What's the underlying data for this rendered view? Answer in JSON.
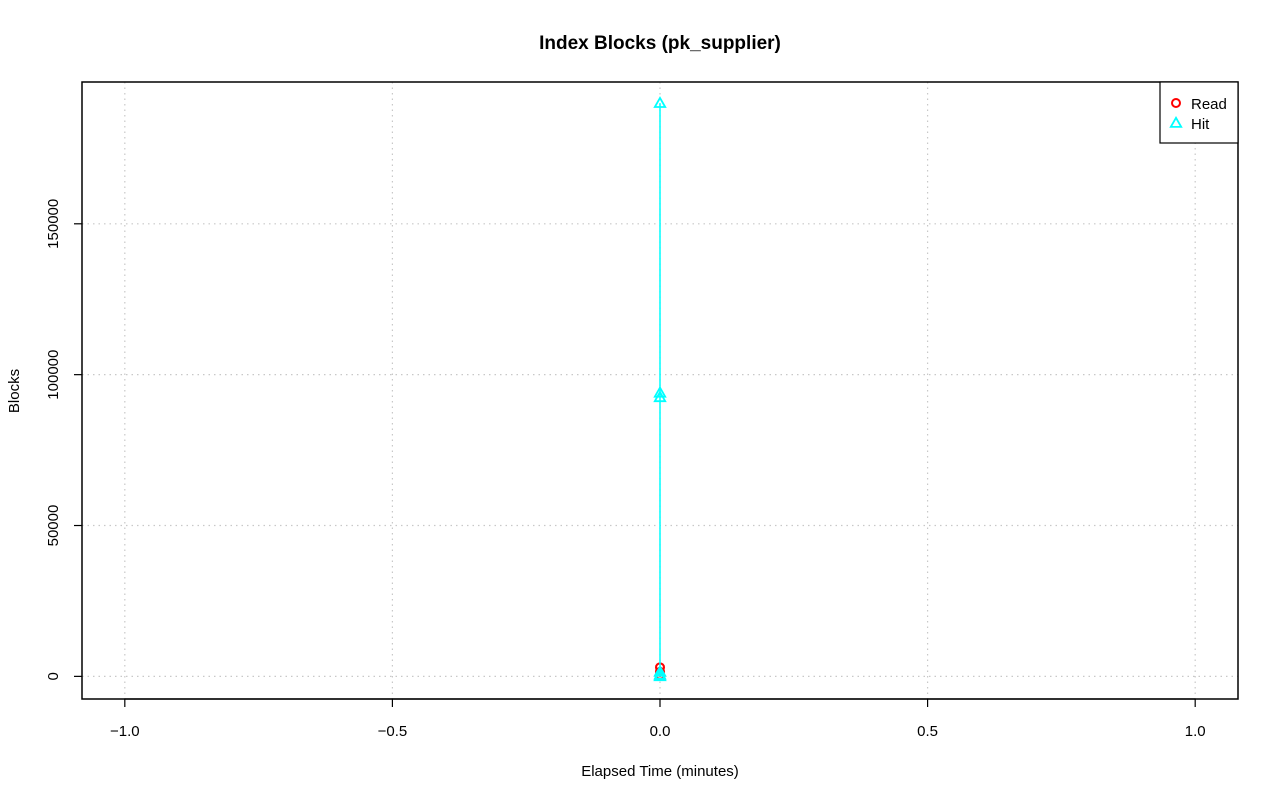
{
  "chart_data": {
    "type": "scatter",
    "title": "Index Blocks (pk_supplier)",
    "xlabel": "Elapsed Time (minutes)",
    "ylabel": "Blocks",
    "xlim": [
      -1.08,
      1.08
    ],
    "ylim": [
      -7500,
      197000
    ],
    "x_ticks": [
      -1.0,
      -0.5,
      0.0,
      0.5,
      1.0
    ],
    "x_tick_labels": [
      "−1.0",
      "−0.5",
      "0.0",
      "0.5",
      "1.0"
    ],
    "y_ticks": [
      0,
      50000,
      100000,
      150000
    ],
    "y_tick_labels": [
      "0",
      "50000",
      "100000",
      "150000"
    ],
    "grid": true,
    "legend_position": "top-right",
    "series": [
      {
        "name": "Read",
        "color": "#ff0000",
        "marker": "circle",
        "x": [
          0,
          0,
          0
        ],
        "y": [
          3000,
          1500,
          500
        ]
      },
      {
        "name": "Hit",
        "color": "#00ffff",
        "marker": "triangle",
        "x": [
          0,
          0,
          0,
          0,
          0,
          0
        ],
        "y": [
          190000,
          94000,
          92500,
          1500,
          500,
          0
        ]
      }
    ]
  }
}
